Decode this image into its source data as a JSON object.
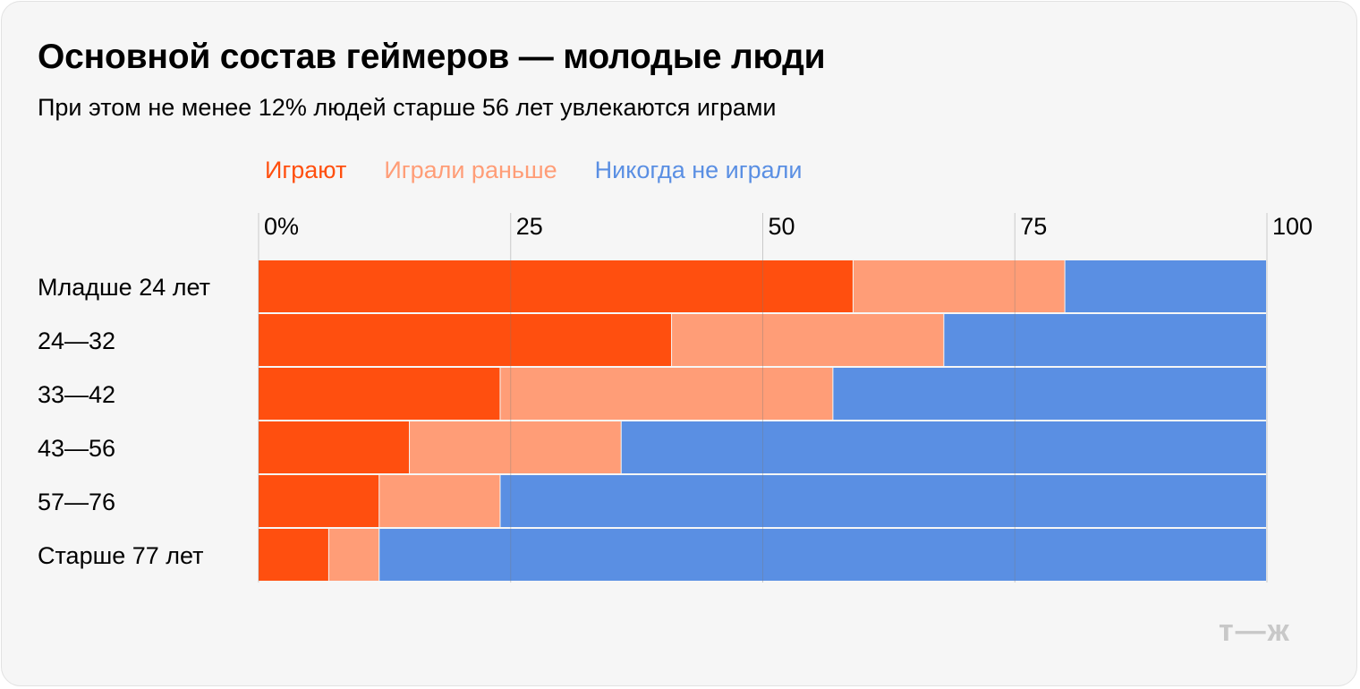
{
  "title": "Основной состав геймеров — молодые люди",
  "subtitle": "При этом не менее 12% людей старше 56 лет увлекаются играми",
  "watermark": "т—ж",
  "chart_data": {
    "type": "bar",
    "orientation": "horizontal",
    "stacked": true,
    "categories": [
      "Младше 24 лет",
      "24—32",
      "33—42",
      "43—56",
      "57—76",
      "Старше 77 лет"
    ],
    "series": [
      {
        "name": "Играют",
        "color": "#ff4f0f",
        "values": [
          59,
          41,
          24,
          15,
          12,
          7
        ]
      },
      {
        "name": "Играли раньше",
        "color": "#ff9d77",
        "values": [
          21,
          27,
          33,
          21,
          12,
          5
        ]
      },
      {
        "name": "Никогда не играли",
        "color": "#5a8fe3",
        "values": [
          20,
          32,
          43,
          64,
          76,
          88
        ]
      }
    ],
    "xlim": [
      0,
      100
    ],
    "xticks": [
      0,
      25,
      50,
      75,
      100
    ],
    "xtick_labels": [
      "0%",
      "25",
      "50",
      "75",
      "100"
    ],
    "grid": true,
    "legend_position": "top"
  }
}
